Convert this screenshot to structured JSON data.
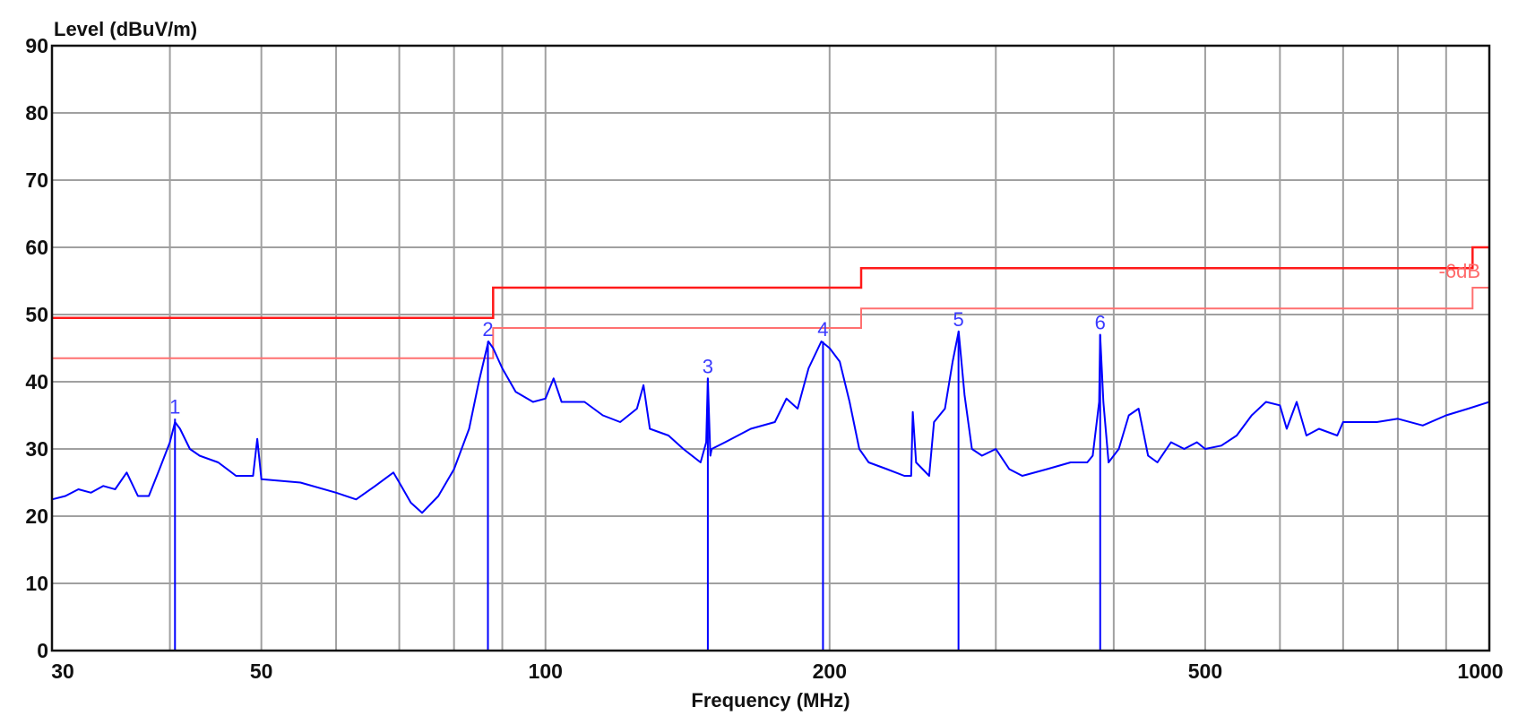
{
  "chart_data": {
    "type": "line",
    "title": "",
    "xlabel": "Frequency (MHz)",
    "ylabel": "Level (dBuV/m)",
    "xscale": "log",
    "xlim": [
      30,
      1000
    ],
    "ylim": [
      0,
      90
    ],
    "grid": true,
    "x_ticks": [
      30,
      50,
      100,
      200,
      500,
      1000
    ],
    "x_tick_labels": [
      "30",
      "50",
      "100",
      "200",
      "500",
      "1000"
    ],
    "x_gridlines": [
      40,
      50,
      60,
      70,
      80,
      90,
      100,
      200,
      300,
      400,
      500,
      600,
      700,
      800,
      900
    ],
    "y_ticks": [
      0,
      10,
      20,
      30,
      40,
      50,
      60,
      70,
      80,
      90
    ],
    "y_tick_labels": [
      "0",
      "10",
      "20",
      "30",
      "40",
      "50",
      "60",
      "70",
      "80",
      "90"
    ],
    "colors": {
      "trace": "#0000ff",
      "limit": "#ff1a1a",
      "margin": "#ff7070",
      "marker_label": "#3a3aff",
      "grid": "#a0a0a0"
    },
    "limit_line": {
      "steps": [
        [
          30,
          49.5
        ],
        [
          88,
          49.5
        ],
        [
          88,
          54
        ],
        [
          216,
          54
        ],
        [
          216,
          56.9
        ],
        [
          960,
          56.9
        ],
        [
          960,
          60
        ],
        [
          1000,
          60
        ]
      ]
    },
    "margin_line": {
      "label": "-6dB",
      "steps": [
        [
          30,
          43.5
        ],
        [
          88,
          43.5
        ],
        [
          88,
          48
        ],
        [
          216,
          48
        ],
        [
          216,
          50.9
        ],
        [
          960,
          50.9
        ],
        [
          960,
          54
        ],
        [
          1000,
          54
        ]
      ]
    },
    "trace": [
      [
        30,
        22.5
      ],
      [
        31,
        23
      ],
      [
        32,
        24
      ],
      [
        33,
        23.5
      ],
      [
        34,
        24.5
      ],
      [
        35,
        24
      ],
      [
        36,
        26.5
      ],
      [
        37,
        23
      ],
      [
        38,
        23
      ],
      [
        39,
        27
      ],
      [
        40,
        31
      ],
      [
        40.5,
        34
      ],
      [
        41,
        33
      ],
      [
        42,
        30
      ],
      [
        43,
        29
      ],
      [
        45,
        28
      ],
      [
        47,
        26
      ],
      [
        49,
        26
      ],
      [
        49.5,
        31.5
      ],
      [
        50,
        25.5
      ],
      [
        55,
        25
      ],
      [
        60,
        23.5
      ],
      [
        63,
        22.5
      ],
      [
        66,
        24.5
      ],
      [
        69,
        26.5
      ],
      [
        70,
        25
      ],
      [
        72,
        22
      ],
      [
        74,
        20.5
      ],
      [
        77,
        23
      ],
      [
        80,
        27
      ],
      [
        83,
        33
      ],
      [
        85,
        40
      ],
      [
        87,
        46
      ],
      [
        88,
        45
      ],
      [
        90,
        42
      ],
      [
        93,
        38.5
      ],
      [
        97,
        37
      ],
      [
        100,
        37.5
      ],
      [
        102,
        40.5
      ],
      [
        104,
        37
      ],
      [
        110,
        37
      ],
      [
        115,
        35
      ],
      [
        120,
        34
      ],
      [
        125,
        36
      ],
      [
        127,
        39.5
      ],
      [
        129,
        33
      ],
      [
        135,
        32
      ],
      [
        140,
        30
      ],
      [
        146,
        28
      ],
      [
        148,
        31
      ],
      [
        148.6,
        40.5
      ],
      [
        149.5,
        29
      ],
      [
        150,
        30
      ],
      [
        155,
        31
      ],
      [
        165,
        33
      ],
      [
        175,
        34
      ],
      [
        180,
        37.5
      ],
      [
        185,
        36
      ],
      [
        190,
        42
      ],
      [
        196,
        46
      ],
      [
        200,
        45
      ],
      [
        205,
        43
      ],
      [
        210,
        37
      ],
      [
        215,
        30
      ],
      [
        220,
        28
      ],
      [
        230,
        27
      ],
      [
        240,
        26
      ],
      [
        244,
        26
      ],
      [
        245,
        35.5
      ],
      [
        247,
        28
      ],
      [
        255,
        26
      ],
      [
        258,
        34
      ],
      [
        265,
        36
      ],
      [
        270,
        43
      ],
      [
        274,
        47.5
      ],
      [
        278,
        38
      ],
      [
        283,
        30
      ],
      [
        290,
        29
      ],
      [
        300,
        30
      ],
      [
        310,
        27
      ],
      [
        320,
        26
      ],
      [
        340,
        27
      ],
      [
        360,
        28
      ],
      [
        375,
        28
      ],
      [
        380,
        29
      ],
      [
        386,
        37
      ],
      [
        387,
        47
      ],
      [
        390,
        37
      ],
      [
        395,
        28
      ],
      [
        405,
        30
      ],
      [
        415,
        35
      ],
      [
        425,
        36
      ],
      [
        435,
        29
      ],
      [
        445,
        28
      ],
      [
        460,
        31
      ],
      [
        475,
        30
      ],
      [
        490,
        31
      ],
      [
        500,
        30
      ],
      [
        520,
        30.5
      ],
      [
        540,
        32
      ],
      [
        560,
        35
      ],
      [
        580,
        37
      ],
      [
        600,
        36.5
      ],
      [
        610,
        33
      ],
      [
        625,
        37
      ],
      [
        640,
        32
      ],
      [
        660,
        33
      ],
      [
        690,
        32
      ],
      [
        700,
        34
      ],
      [
        730,
        34
      ],
      [
        760,
        34
      ],
      [
        800,
        34.5
      ],
      [
        850,
        33.5
      ],
      [
        900,
        35
      ],
      [
        950,
        36
      ],
      [
        1000,
        37
      ]
    ],
    "markers": [
      {
        "label": "1",
        "freq": 40.5,
        "level": 34.5
      },
      {
        "label": "2",
        "freq": 86.9,
        "level": 46
      },
      {
        "label": "3",
        "freq": 148.6,
        "level": 40.5
      },
      {
        "label": "4",
        "freq": 196.8,
        "level": 46
      },
      {
        "label": "5",
        "freq": 273.9,
        "level": 47.5
      },
      {
        "label": "6",
        "freq": 387,
        "level": 47
      }
    ]
  }
}
